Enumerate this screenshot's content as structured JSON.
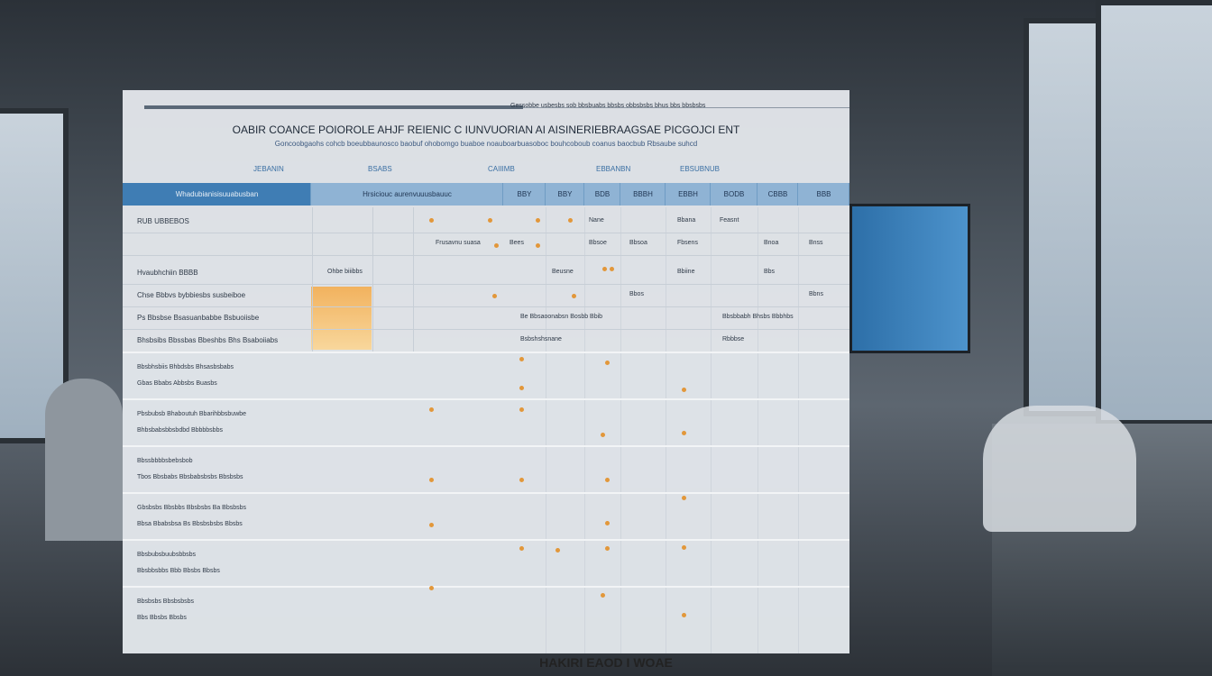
{
  "header": {
    "topline": "Gessobbe usbesbs sob bbsbuabs bbsbs obbsbsbs bhus bbs bbsbsbs",
    "title": "OABIR COANCE POIOROLE AHJF REIENIC C IUNVUORIAN AI AISINERIEBRAAGSAE PICGOJCI ENT",
    "subtitle": "Goncoobgaohs cohcb boeubbaunosco baobuf ohobomgo buaboe noauboarbuasoboc bouhcoboub coanus baocbub Rbsaube suhcd",
    "groups": [
      "JEBANIN",
      "BSABS",
      "CAIIIMB",
      "EBBANBN",
      "EBSUBNUB"
    ]
  },
  "table": {
    "header": [
      "Whadubianisisuuabusban",
      "Hrsiciouc aurenvuuusbauuc",
      "BBY",
      "BBY",
      "BDB",
      "BBBH",
      "EBBH",
      "BODB",
      "CBBB",
      "BBB"
    ],
    "rows": [
      {
        "label": "RUB UBBEBOS",
        "cells": [
          "Nane",
          "Bbana",
          "Feasnt"
        ]
      },
      {
        "cells": [
          "Frusavnu suasa",
          "Bees",
          "Bbsoe",
          "Bbsoa",
          "Fbsens",
          "Bnoa",
          "Bnss"
        ]
      },
      {
        "label": "Hvaubhchiin BBBB",
        "cells": [
          "Ohbe biiibbs",
          "Beusne",
          "Bbiine",
          "Bbs"
        ]
      },
      {
        "label": "Chse Bbbvs bybbiesbs susbeiboe",
        "cells": [
          "Bbos",
          "Bbns"
        ]
      },
      {
        "label": "Ps Bbsbse Bsasuanbabbe Bsbuoiisbe",
        "cells": [
          "Be Bbsaoonabsn Bosbb Bbib",
          "Bbsbbabh Bhsbs Bbbhbs"
        ]
      },
      {
        "label": "Bhsbsibs Bbssbas Bbeshbs Bhs Bsaboiiabs",
        "cells": [
          "Bsbshshsnane",
          "Rbbbse"
        ]
      }
    ],
    "bands": [
      [
        "Bbsbhsbiis Bhbdsbs Bhsasbsbabs",
        "Gbas Bbabs Abbsbs Buasbs"
      ],
      [
        "Pbsbubsb Bhaboutuh Bbarihbbsbuwbe",
        "Bhbsbabsbbsbdbd Bbbbbsbbs"
      ],
      [
        "Bbssbbbbsbebsbob",
        "Tbos Bbsbabs Bbsbabsbsbs Bbsbsbs"
      ],
      [
        "Gbsbsbs Bbsbbs Bbsbsbs Ba Bbsbsbs",
        "Bbsa Bbabsbsa Bs Bbsbsbsbs Bbsbs"
      ],
      [
        "Bbsbubsbuubsbbsbs",
        "Bbsbbsbbs Bbb Bbsbs Bbsbs"
      ],
      [
        "Bbsbsbs Bbsbsbsbs",
        "Bbs Bbsbs Bbsbs"
      ]
    ]
  },
  "footer": "HAKIRI EAOD I WOAE"
}
